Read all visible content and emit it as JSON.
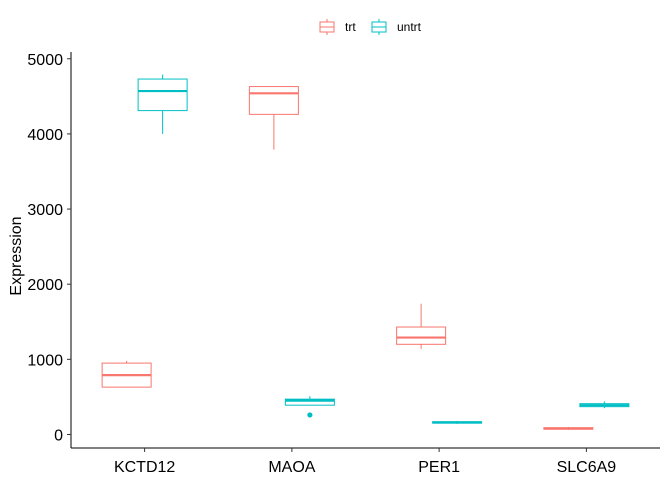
{
  "chart_data": {
    "type": "boxplot",
    "title": "",
    "xlabel": "",
    "ylabel": "Expression",
    "ylim": [
      -180,
      5090
    ],
    "yticks": [
      0,
      1000,
      2000,
      3000,
      4000,
      5000
    ],
    "categories": [
      "KCTD12",
      "MAOA",
      "PER1",
      "SLC6A9"
    ],
    "legend": {
      "position": "top",
      "entries": [
        "trt",
        "untrt"
      ]
    },
    "grid": false,
    "series": [
      {
        "name": "trt",
        "color": "#F8766D",
        "boxes": [
          {
            "category": "KCTD12",
            "min": 630,
            "q1": 630,
            "median": 790,
            "q3": 950,
            "max": 980,
            "outliers": []
          },
          {
            "category": "MAOA",
            "min": 3790,
            "q1": 4260,
            "median": 4540,
            "q3": 4630,
            "max": 4630,
            "outliers": []
          },
          {
            "category": "PER1",
            "min": 1140,
            "q1": 1200,
            "median": 1290,
            "q3": 1430,
            "max": 1740,
            "outliers": []
          },
          {
            "category": "SLC6A9",
            "min": 60,
            "q1": 70,
            "median": 80,
            "q3": 90,
            "max": 100,
            "outliers": []
          }
        ]
      },
      {
        "name": "untrt",
        "color": "#00BFC4",
        "boxes": [
          {
            "category": "KCTD12",
            "min": 4000,
            "q1": 4310,
            "median": 4570,
            "q3": 4730,
            "max": 4790,
            "outliers": []
          },
          {
            "category": "MAOA",
            "min": 390,
            "q1": 390,
            "median": 450,
            "q3": 470,
            "max": 510,
            "outliers": [
              260
            ]
          },
          {
            "category": "PER1",
            "min": 140,
            "q1": 150,
            "median": 160,
            "q3": 170,
            "max": 180,
            "outliers": []
          },
          {
            "category": "SLC6A9",
            "min": 350,
            "q1": 370,
            "median": 390,
            "q3": 410,
            "max": 440,
            "outliers": []
          }
        ]
      }
    ]
  }
}
